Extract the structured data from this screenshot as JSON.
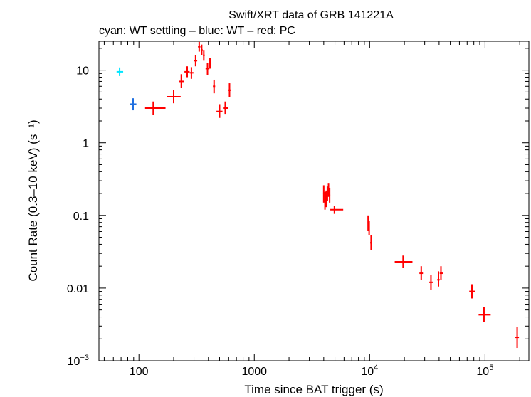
{
  "chart_data": {
    "type": "scatter",
    "title": "Swift/XRT data of GRB 141221A",
    "subtitle": "cyan: WT settling – blue: WT – red: PC",
    "xlabel": "Time since BAT trigger (s)",
    "ylabel": "Count Rate (0.3–10 keV) (s⁻¹)",
    "xscale": "log",
    "yscale": "log",
    "xlim": [
      45,
      240000
    ],
    "ylim": [
      0.001,
      25
    ],
    "grid": false,
    "legend": "none",
    "x_ticks": [
      {
        "value": 100,
        "label": "100"
      },
      {
        "value": 1000,
        "label": "1000"
      },
      {
        "value": 10000,
        "label": "10",
        "sup": "4"
      },
      {
        "value": 100000,
        "label": "10",
        "sup": "5"
      }
    ],
    "y_ticks": [
      {
        "value": 10,
        "label": "10"
      },
      {
        "value": 1,
        "label": "1"
      },
      {
        "value": 0.1,
        "label": "0.1"
      },
      {
        "value": 0.01,
        "label": "0.01"
      },
      {
        "value": 0.001,
        "label": "10",
        "sup": "−3"
      }
    ],
    "series": [
      {
        "color": "#00e5ff",
        "points": [
          {
            "x": 68,
            "xlo": 64,
            "xhi": 73,
            "y": 9.5,
            "ylo": 8.3,
            "yhi": 10.9
          }
        ]
      },
      {
        "color": "#1f6fe0",
        "points": [
          {
            "x": 89,
            "xlo": 84,
            "xhi": 95,
            "y": 3.4,
            "ylo": 2.8,
            "yhi": 4.1
          }
        ]
      },
      {
        "color": "#ff0000",
        "points": [
          {
            "x": 133,
            "xlo": 113,
            "xhi": 170,
            "y": 3.0,
            "ylo": 2.4,
            "yhi": 3.7
          },
          {
            "x": 200,
            "xlo": 174,
            "xhi": 230,
            "y": 4.3,
            "ylo": 3.5,
            "yhi": 5.3
          },
          {
            "x": 233,
            "xlo": 222,
            "xhi": 245,
            "y": 7.0,
            "ylo": 5.7,
            "yhi": 8.8
          },
          {
            "x": 262,
            "xlo": 248,
            "xhi": 275,
            "y": 9.5,
            "ylo": 8.0,
            "yhi": 11.3
          },
          {
            "x": 285,
            "xlo": 276,
            "xhi": 297,
            "y": 9.2,
            "ylo": 7.6,
            "yhi": 11.0
          },
          {
            "x": 310,
            "xlo": 300,
            "xhi": 320,
            "y": 13.5,
            "ylo": 11.3,
            "yhi": 16.0
          },
          {
            "x": 333,
            "xlo": 325,
            "xhi": 341,
            "y": 21.0,
            "ylo": 18.0,
            "yhi": 24.5
          },
          {
            "x": 350,
            "xlo": 343,
            "xhi": 357,
            "y": 19.0,
            "ylo": 16.0,
            "yhi": 22.5
          },
          {
            "x": 365,
            "xlo": 359,
            "xhi": 372,
            "y": 16.0,
            "ylo": 13.5,
            "yhi": 19.0
          },
          {
            "x": 393,
            "xlo": 378,
            "xhi": 408,
            "y": 10.5,
            "ylo": 8.6,
            "yhi": 12.6
          },
          {
            "x": 413,
            "xlo": 408,
            "xhi": 420,
            "y": 12.5,
            "ylo": 10.5,
            "yhi": 14.8
          },
          {
            "x": 448,
            "xlo": 438,
            "xhi": 458,
            "y": 6.0,
            "ylo": 4.8,
            "yhi": 7.4
          },
          {
            "x": 500,
            "xlo": 470,
            "xhi": 530,
            "y": 2.7,
            "ylo": 2.2,
            "yhi": 3.4
          },
          {
            "x": 560,
            "xlo": 535,
            "xhi": 590,
            "y": 3.0,
            "ylo": 2.5,
            "yhi": 3.7
          },
          {
            "x": 610,
            "xlo": 595,
            "xhi": 628,
            "y": 5.3,
            "ylo": 4.3,
            "yhi": 6.6
          },
          {
            "x": 4000,
            "xlo": 3950,
            "xhi": 4050,
            "y": 0.2,
            "ylo": 0.15,
            "yhi": 0.26
          },
          {
            "x": 4100,
            "xlo": 4050,
            "xhi": 4150,
            "y": 0.16,
            "ylo": 0.12,
            "yhi": 0.21
          },
          {
            "x": 4200,
            "xlo": 4150,
            "xhi": 4250,
            "y": 0.17,
            "ylo": 0.13,
            "yhi": 0.22
          },
          {
            "x": 4300,
            "xlo": 4250,
            "xhi": 4350,
            "y": 0.2,
            "ylo": 0.16,
            "yhi": 0.25
          },
          {
            "x": 4400,
            "xlo": 4350,
            "xhi": 4450,
            "y": 0.23,
            "ylo": 0.18,
            "yhi": 0.28
          },
          {
            "x": 4500,
            "xlo": 4450,
            "xhi": 4560,
            "y": 0.19,
            "ylo": 0.15,
            "yhi": 0.24
          },
          {
            "x": 4950,
            "xlo": 4560,
            "xhi": 5900,
            "y": 0.12,
            "ylo": 0.105,
            "yhi": 0.135
          },
          {
            "x": 9700,
            "xlo": 9600,
            "xhi": 9800,
            "y": 0.08,
            "ylo": 0.062,
            "yhi": 0.1
          },
          {
            "x": 9900,
            "xlo": 9800,
            "xhi": 10000,
            "y": 0.068,
            "ylo": 0.053,
            "yhi": 0.085
          },
          {
            "x": 10300,
            "xlo": 10100,
            "xhi": 10500,
            "y": 0.042,
            "ylo": 0.033,
            "yhi": 0.054
          },
          {
            "x": 19500,
            "xlo": 16500,
            "xhi": 23500,
            "y": 0.023,
            "ylo": 0.019,
            "yhi": 0.028
          },
          {
            "x": 28000,
            "xlo": 27000,
            "xhi": 29000,
            "y": 0.016,
            "ylo": 0.013,
            "yhi": 0.02
          },
          {
            "x": 34000,
            "xlo": 32500,
            "xhi": 35500,
            "y": 0.012,
            "ylo": 0.0095,
            "yhi": 0.015
          },
          {
            "x": 39500,
            "xlo": 38500,
            "xhi": 40500,
            "y": 0.013,
            "ylo": 0.0105,
            "yhi": 0.017
          },
          {
            "x": 41500,
            "xlo": 40500,
            "xhi": 43000,
            "y": 0.016,
            "ylo": 0.013,
            "yhi": 0.02
          },
          {
            "x": 77000,
            "xlo": 73000,
            "xhi": 82000,
            "y": 0.009,
            "ylo": 0.0072,
            "yhi": 0.0113
          },
          {
            "x": 98000,
            "xlo": 88000,
            "xhi": 112000,
            "y": 0.0043,
            "ylo": 0.0034,
            "yhi": 0.0055
          },
          {
            "x": 190000,
            "xlo": 183000,
            "xhi": 197000,
            "y": 0.0021,
            "ylo": 0.0015,
            "yhi": 0.0029
          }
        ]
      }
    ]
  }
}
